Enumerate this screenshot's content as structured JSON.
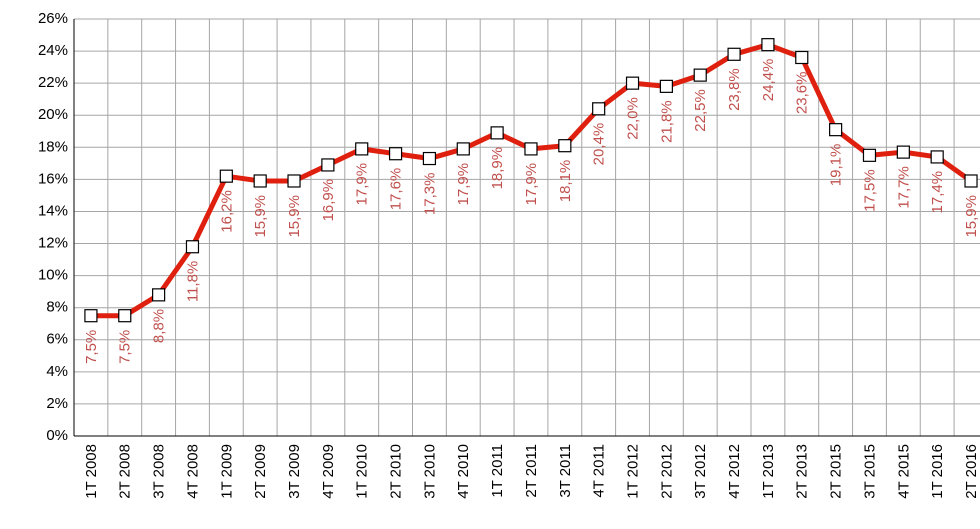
{
  "chart_data": {
    "type": "line",
    "categories": [
      "1T 2008",
      "2T 2008",
      "3T 2008",
      "4T 2008",
      "1T 2009",
      "2T 2009",
      "3T 2009",
      "4T 2009",
      "1T 2010",
      "2T 2010",
      "3T 2010",
      "4T 2010",
      "1T 2011",
      "2T 2011",
      "3T 2011",
      "4T 2011",
      "1T 2012",
      "2T 2012",
      "3T 2012",
      "4T 2012",
      "1T 2013",
      "2T 2013",
      "2T 2015",
      "3T 2015",
      "4T 2015",
      "1T 2016",
      "2T 2016"
    ],
    "values": [
      7.5,
      7.5,
      8.8,
      11.8,
      16.2,
      15.9,
      15.9,
      16.9,
      17.9,
      17.6,
      17.3,
      17.9,
      18.9,
      17.9,
      18.1,
      20.4,
      22.0,
      21.8,
      22.5,
      23.8,
      24.4,
      23.6,
      19.1,
      17.5,
      17.7,
      17.4,
      15.9
    ],
    "value_labels": [
      "7,5%",
      "7,5%",
      "8,8%",
      "11,8%",
      "16,2%",
      "15,9%",
      "15,9%",
      "16,9%",
      "17,9%",
      "17,6%",
      "17,3%",
      "17,9%",
      "18,9%",
      "17,9%",
      "18,1%",
      "20,4%",
      "22,0%",
      "21,8%",
      "22,5%",
      "23,8%",
      "24,4%",
      "23,6%",
      "19,1%",
      "17,5%",
      "17,7%",
      "17,4%",
      "15,9%"
    ],
    "color": "#e0200f",
    "label_color": "#c0504d",
    "ylim": [
      0,
      26
    ],
    "yticks": [
      {
        "value": 0,
        "label": "0%"
      },
      {
        "value": 2,
        "label": "2%"
      },
      {
        "value": 4,
        "label": "4%"
      },
      {
        "value": 6,
        "label": "6%"
      },
      {
        "value": 8,
        "label": "8%"
      },
      {
        "value": 10,
        "label": "10%"
      },
      {
        "value": 12,
        "label": "12%"
      },
      {
        "value": 14,
        "label": "14%"
      },
      {
        "value": 16,
        "label": "16%"
      },
      {
        "value": 18,
        "label": "18%"
      },
      {
        "value": 20,
        "label": "20%"
      },
      {
        "value": 22,
        "label": "22%"
      },
      {
        "value": 24,
        "label": "24%"
      },
      {
        "value": 26,
        "label": "26%"
      }
    ],
    "grid": true
  }
}
